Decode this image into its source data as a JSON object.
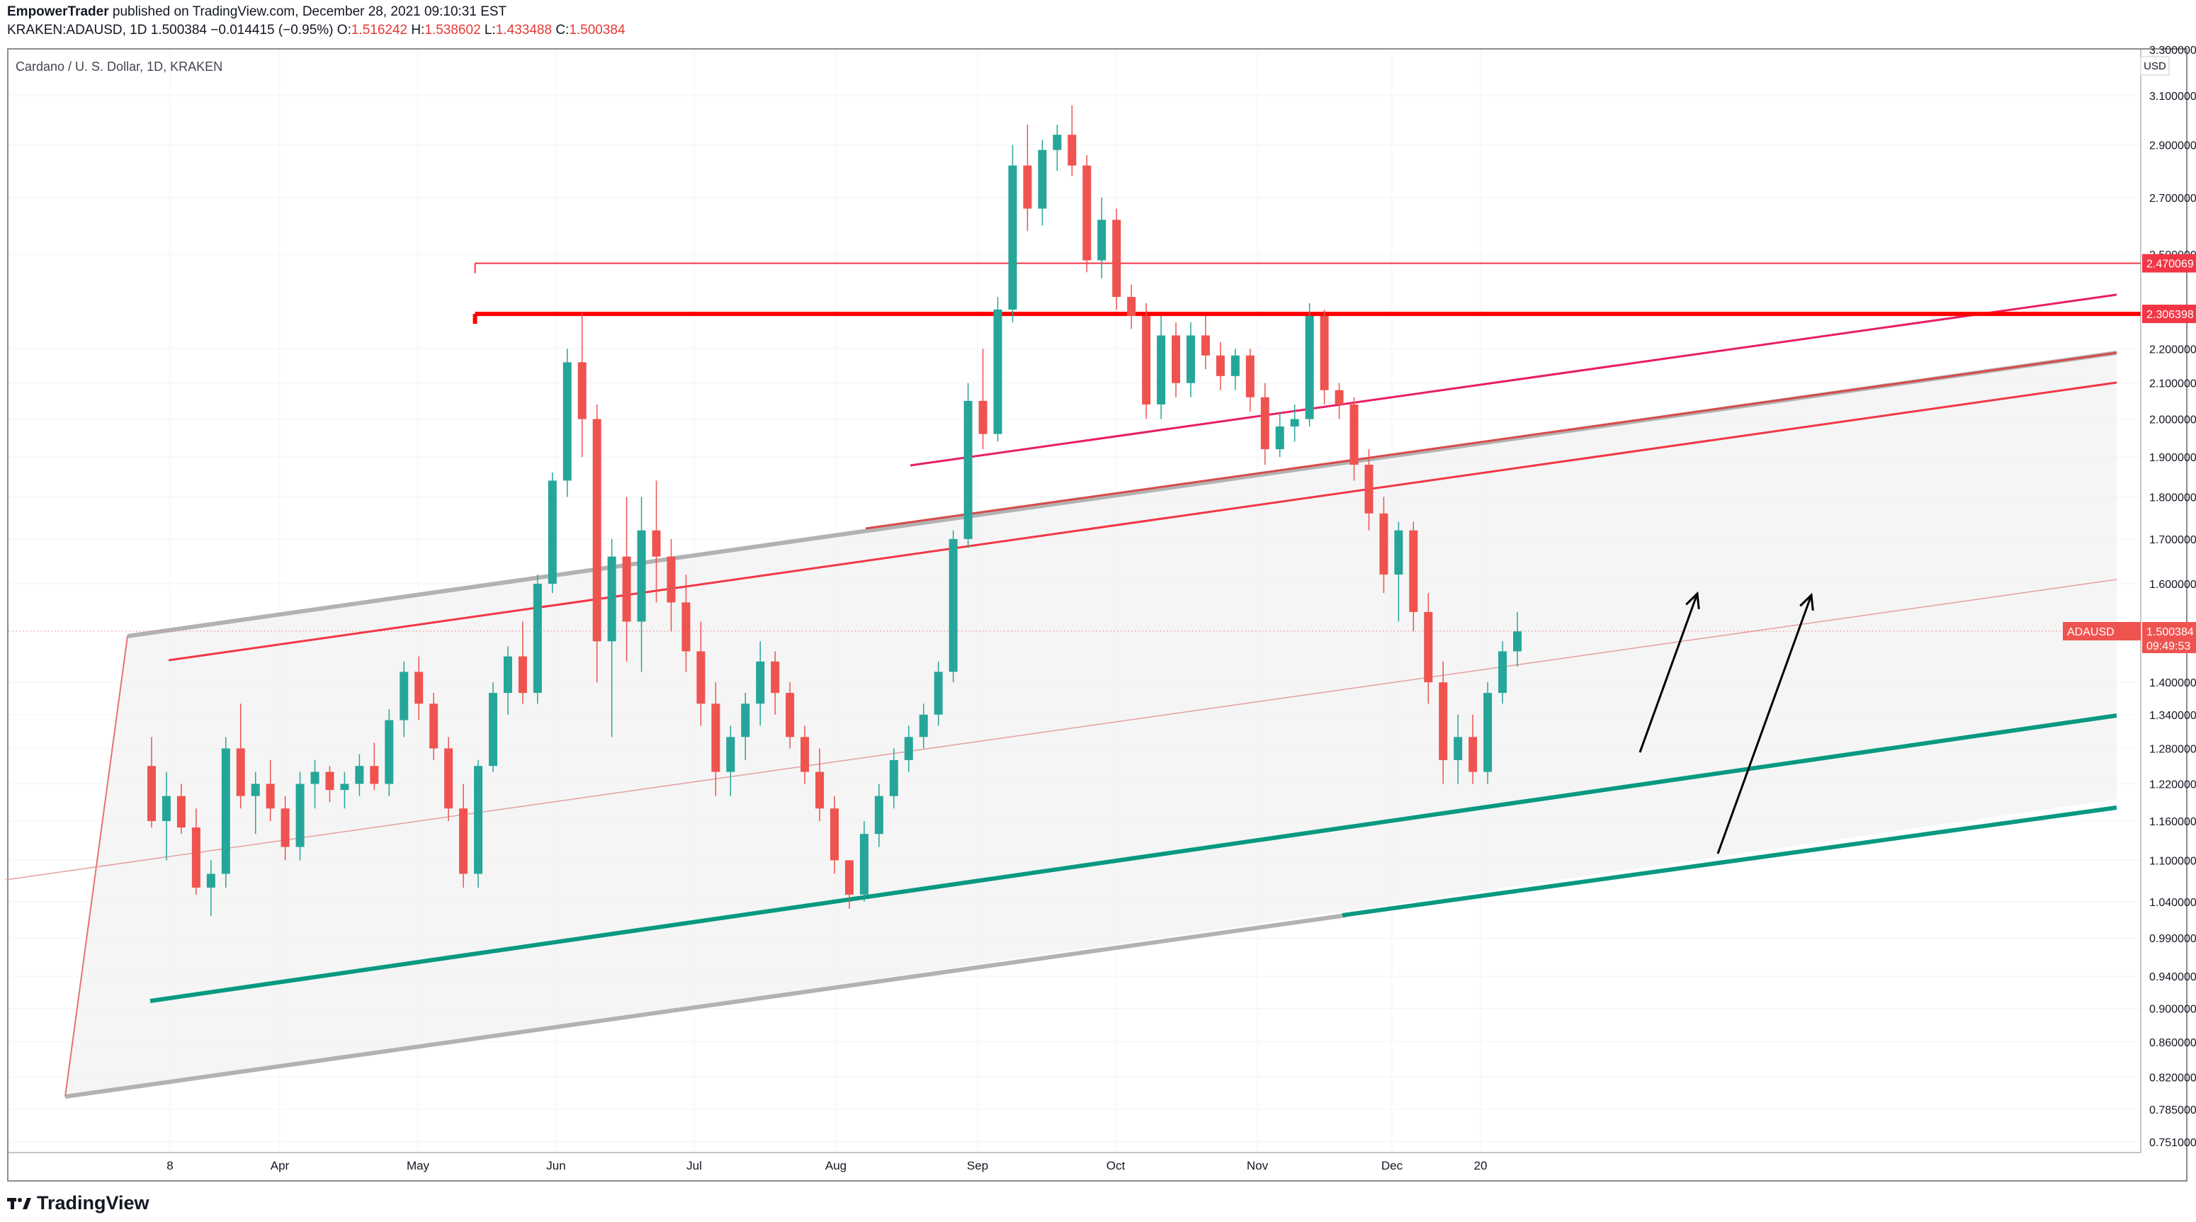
{
  "header": {
    "publisher": "EmpowerTrader",
    "published_line": " published on TradingView.com, December 28, 2021 09:10:31 EST",
    "symbol_line": "KRAKEN:ADAUSD, 1D",
    "last": "1.500384",
    "change": "−0.014415 (−0.95%)",
    "o_label": "O:",
    "o_value": "1.516242",
    "h_label": "H:",
    "h_value": "1.538602",
    "l_label": "L:",
    "l_value": "1.433488",
    "c_label": "C:",
    "c_value": "1.500384"
  },
  "plot_title": "Cardano / U. S. Dollar, 1D, KRAKEN",
  "brand": "TradingView",
  "colors": {
    "bull": "#26a69a",
    "bear": "#ef5350",
    "resistance": "#ff0000",
    "channel_gray": "#b2b2b2",
    "support_green": "#089981",
    "pink_line": "#e91e63"
  },
  "chart_data": {
    "type": "candlestick",
    "title": "Cardano / U. S. Dollar, 1D, KRAKEN",
    "currency": "USD",
    "y_scale": "log",
    "ylim": [
      0.75,
      3.1
    ],
    "x_tick_labels": [
      "8",
      "Apr",
      "May",
      "Jun",
      "Jul",
      "Aug",
      "Sep",
      "Oct",
      "Nov",
      "Dec",
      "20"
    ],
    "y_tick_labels": [
      "3.300000",
      "3.100000",
      "2.900000",
      "2.700000",
      "2.500000",
      "2.200000",
      "2.100000",
      "2.000000",
      "1.900000",
      "1.800000",
      "1.700000",
      "1.600000",
      "1.400000",
      "1.340000",
      "1.280000",
      "1.220000",
      "1.160000",
      "1.100000",
      "1.040000",
      "0.990000",
      "0.940000",
      "0.900000",
      "0.860000",
      "0.820000",
      "0.785000",
      "0.751000"
    ],
    "y_tick_values": [
      3.3,
      3.1,
      2.9,
      2.7,
      2.5,
      2.2,
      2.1,
      2.0,
      1.9,
      1.8,
      1.7,
      1.6,
      1.4,
      1.34,
      1.28,
      1.22,
      1.16,
      1.1,
      1.04,
      0.99,
      0.94,
      0.9,
      0.86,
      0.82,
      0.785,
      0.751
    ],
    "price_labels": [
      {
        "text": "2.470069",
        "value": 2.470069,
        "color": "#f23645"
      },
      {
        "text": "2.306398",
        "value": 2.306398,
        "color": "#f23645"
      },
      {
        "text": "1.500384",
        "value": 1.500384,
        "color": "#ef5350",
        "symbol": "ADAUSD",
        "countdown": "09:49:53"
      }
    ],
    "candles_ohlc_approx": [
      [
        1.25,
        1.3,
        1.15,
        1.16
      ],
      [
        1.16,
        1.24,
        1.1,
        1.2
      ],
      [
        1.2,
        1.22,
        1.14,
        1.15
      ],
      [
        1.15,
        1.18,
        1.05,
        1.06
      ],
      [
        1.06,
        1.1,
        1.02,
        1.08
      ],
      [
        1.08,
        1.3,
        1.06,
        1.28
      ],
      [
        1.28,
        1.36,
        1.18,
        1.2
      ],
      [
        1.2,
        1.24,
        1.14,
        1.22
      ],
      [
        1.22,
        1.26,
        1.16,
        1.18
      ],
      [
        1.18,
        1.2,
        1.1,
        1.12
      ],
      [
        1.12,
        1.24,
        1.1,
        1.22
      ],
      [
        1.22,
        1.26,
        1.18,
        1.24
      ],
      [
        1.24,
        1.25,
        1.19,
        1.21
      ],
      [
        1.21,
        1.24,
        1.18,
        1.22
      ],
      [
        1.22,
        1.27,
        1.2,
        1.25
      ],
      [
        1.25,
        1.29,
        1.21,
        1.22
      ],
      [
        1.22,
        1.35,
        1.2,
        1.33
      ],
      [
        1.33,
        1.44,
        1.3,
        1.42
      ],
      [
        1.42,
        1.45,
        1.33,
        1.36
      ],
      [
        1.36,
        1.38,
        1.26,
        1.28
      ],
      [
        1.28,
        1.3,
        1.16,
        1.18
      ],
      [
        1.18,
        1.22,
        1.06,
        1.08
      ],
      [
        1.08,
        1.26,
        1.06,
        1.25
      ],
      [
        1.25,
        1.4,
        1.24,
        1.38
      ],
      [
        1.38,
        1.47,
        1.34,
        1.45
      ],
      [
        1.45,
        1.52,
        1.36,
        1.38
      ],
      [
        1.38,
        1.62,
        1.36,
        1.6
      ],
      [
        1.6,
        1.86,
        1.58,
        1.84
      ],
      [
        1.84,
        2.2,
        1.8,
        2.16
      ],
      [
        2.16,
        2.31,
        1.9,
        2.0
      ],
      [
        2.0,
        2.04,
        1.4,
        1.48
      ],
      [
        1.48,
        1.7,
        1.3,
        1.66
      ],
      [
        1.66,
        1.8,
        1.44,
        1.52
      ],
      [
        1.52,
        1.8,
        1.42,
        1.72
      ],
      [
        1.72,
        1.84,
        1.56,
        1.66
      ],
      [
        1.66,
        1.7,
        1.5,
        1.56
      ],
      [
        1.56,
        1.62,
        1.42,
        1.46
      ],
      [
        1.46,
        1.52,
        1.32,
        1.36
      ],
      [
        1.36,
        1.4,
        1.2,
        1.24
      ],
      [
        1.24,
        1.32,
        1.2,
        1.3
      ],
      [
        1.3,
        1.38,
        1.26,
        1.36
      ],
      [
        1.36,
        1.48,
        1.32,
        1.44
      ],
      [
        1.44,
        1.46,
        1.34,
        1.38
      ],
      [
        1.38,
        1.4,
        1.28,
        1.3
      ],
      [
        1.3,
        1.32,
        1.22,
        1.24
      ],
      [
        1.24,
        1.28,
        1.16,
        1.18
      ],
      [
        1.18,
        1.2,
        1.08,
        1.1
      ],
      [
        1.1,
        1.1,
        1.03,
        1.05
      ],
      [
        1.05,
        1.16,
        1.04,
        1.14
      ],
      [
        1.14,
        1.22,
        1.12,
        1.2
      ],
      [
        1.2,
        1.28,
        1.18,
        1.26
      ],
      [
        1.26,
        1.32,
        1.24,
        1.3
      ],
      [
        1.3,
        1.36,
        1.28,
        1.34
      ],
      [
        1.34,
        1.44,
        1.32,
        1.42
      ],
      [
        1.42,
        1.72,
        1.4,
        1.7
      ],
      [
        1.7,
        2.1,
        1.68,
        2.05
      ],
      [
        2.05,
        2.2,
        1.92,
        1.96
      ],
      [
        1.96,
        2.36,
        1.94,
        2.32
      ],
      [
        2.32,
        2.9,
        2.28,
        2.82
      ],
      [
        2.82,
        2.98,
        2.58,
        2.66
      ],
      [
        2.66,
        2.92,
        2.6,
        2.88
      ],
      [
        2.88,
        2.98,
        2.8,
        2.94
      ],
      [
        2.94,
        3.06,
        2.78,
        2.82
      ],
      [
        2.82,
        2.86,
        2.44,
        2.48
      ],
      [
        2.48,
        2.7,
        2.42,
        2.62
      ],
      [
        2.62,
        2.66,
        2.32,
        2.36
      ],
      [
        2.36,
        2.4,
        2.26,
        2.3
      ],
      [
        2.3,
        2.34,
        2.0,
        2.04
      ],
      [
        2.04,
        2.3,
        2.0,
        2.24
      ],
      [
        2.24,
        2.28,
        2.06,
        2.1
      ],
      [
        2.1,
        2.28,
        2.06,
        2.24
      ],
      [
        2.24,
        2.3,
        2.14,
        2.18
      ],
      [
        2.18,
        2.22,
        2.08,
        2.12
      ],
      [
        2.12,
        2.2,
        2.08,
        2.18
      ],
      [
        2.18,
        2.2,
        2.02,
        2.06
      ],
      [
        2.06,
        2.1,
        1.88,
        1.92
      ],
      [
        1.92,
        2.02,
        1.9,
        1.98
      ],
      [
        1.98,
        2.04,
        1.94,
        2.0
      ],
      [
        2.0,
        2.34,
        1.98,
        2.3
      ],
      [
        2.3,
        2.32,
        2.04,
        2.08
      ],
      [
        2.08,
        2.1,
        2.0,
        2.04
      ],
      [
        2.04,
        2.06,
        1.84,
        1.88
      ],
      [
        1.88,
        1.92,
        1.72,
        1.76
      ],
      [
        1.76,
        1.8,
        1.58,
        1.62
      ],
      [
        1.62,
        1.74,
        1.52,
        1.72
      ],
      [
        1.72,
        1.74,
        1.5,
        1.54
      ],
      [
        1.54,
        1.58,
        1.36,
        1.4
      ],
      [
        1.4,
        1.44,
        1.22,
        1.26
      ],
      [
        1.26,
        1.34,
        1.22,
        1.3
      ],
      [
        1.3,
        1.34,
        1.22,
        1.24
      ],
      [
        1.24,
        1.4,
        1.22,
        1.38
      ],
      [
        1.38,
        1.48,
        1.36,
        1.46
      ],
      [
        1.46,
        1.54,
        1.43,
        1.5
      ]
    ],
    "lines": [
      {
        "name": "",
        "color": "#ff0000",
        "width": 6,
        "from": [
          0.2188,
          2.306398
        ],
        "to": [
          1.0,
          2.306398
        ]
      },
      {
        "name": "",
        "color": "#f23645",
        "width": 2,
        "from": [
          0.2188,
          2.470069
        ],
        "to": [
          1.0,
          2.470069
        ]
      }
    ],
    "annotations": [
      "up-arrow",
      "up-arrow"
    ]
  }
}
